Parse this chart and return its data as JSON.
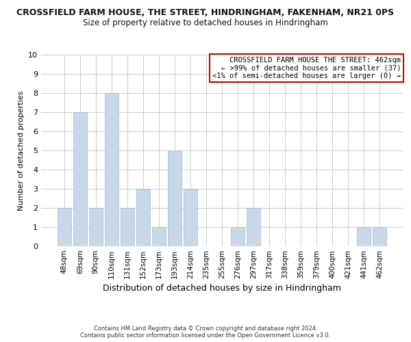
{
  "title_line1": "CROSSFIELD FARM HOUSE, THE STREET, HINDRINGHAM, FAKENHAM, NR21 0PS",
  "title_line2": "Size of property relative to detached houses in Hindringham",
  "xlabel": "Distribution of detached houses by size in Hindringham",
  "ylabel": "Number of detached properties",
  "bar_labels": [
    "48sqm",
    "69sqm",
    "90sqm",
    "110sqm",
    "131sqm",
    "152sqm",
    "173sqm",
    "193sqm",
    "214sqm",
    "235sqm",
    "255sqm",
    "276sqm",
    "297sqm",
    "317sqm",
    "338sqm",
    "359sqm",
    "379sqm",
    "400sqm",
    "421sqm",
    "441sqm",
    "462sqm"
  ],
  "bar_values": [
    2,
    7,
    2,
    8,
    2,
    3,
    1,
    5,
    3,
    0,
    0,
    1,
    2,
    0,
    0,
    0,
    0,
    0,
    0,
    1,
    1
  ],
  "bar_color": "#c8d8e8",
  "bar_edgecolor": "#a0b8cc",
  "ylim": [
    0,
    10
  ],
  "yticks": [
    0,
    1,
    2,
    3,
    4,
    5,
    6,
    7,
    8,
    9,
    10
  ],
  "legend_title": "CROSSFIELD FARM HOUSE THE STREET: 462sqm",
  "legend_line1": "← >99% of detached houses are smaller (37)",
  "legend_line2": "<1% of semi-detached houses are larger (0) →",
  "legend_box_color": "#ffffff",
  "legend_box_edgecolor": "#cc0000",
  "footer_line1": "Contains HM Land Registry data © Crown copyright and database right 2024.",
  "footer_line2": "Contains public sector information licensed under the Open Government Licence v3.0.",
  "bg_color": "#ffffff",
  "grid_color": "#cccccc",
  "title1_fontsize": 9,
  "title2_fontsize": 8.5,
  "ylabel_fontsize": 8,
  "xlabel_fontsize": 9,
  "tick_fontsize": 7.5,
  "ytick_fontsize": 8,
  "footer_fontsize": 6,
  "annot_fontsize": 7.5
}
